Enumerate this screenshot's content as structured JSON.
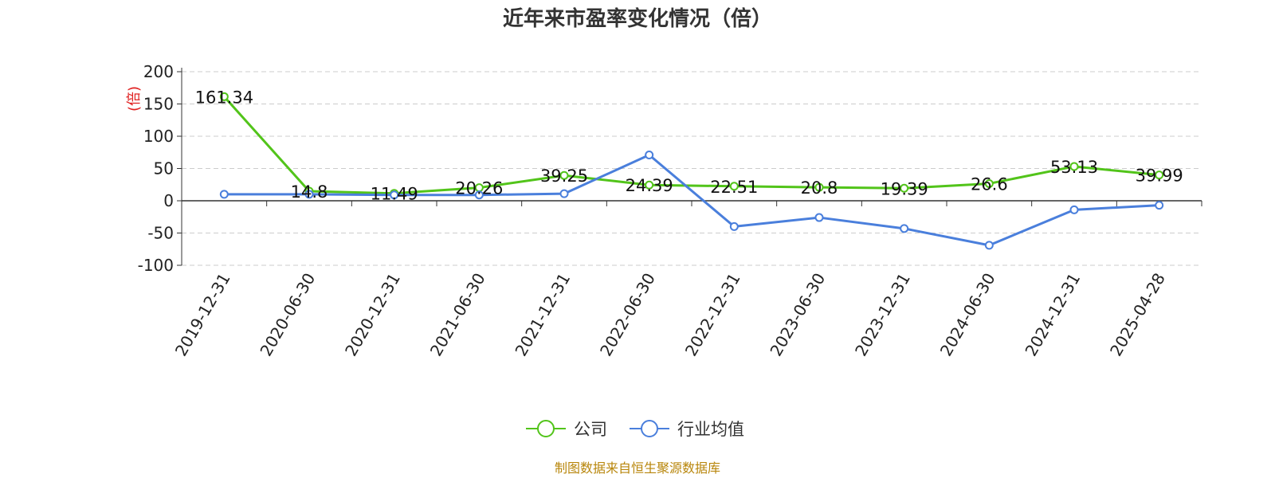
{
  "chart_data": {
    "type": "line",
    "title": "近年来市盈率变化情况（倍）",
    "ylabel": "(倍)",
    "ylim": [
      -100,
      200
    ],
    "yticks": [
      200,
      150,
      100,
      50,
      0,
      -50,
      -100
    ],
    "grid": true,
    "legend_position": "bottom",
    "categories": [
      "2019-12-31",
      "2020-06-30",
      "2020-12-31",
      "2021-06-30",
      "2021-12-31",
      "2022-06-30",
      "2022-12-31",
      "2023-06-30",
      "2023-12-31",
      "2024-06-30",
      "2024-12-31",
      "2025-04-28"
    ],
    "series": [
      {
        "name": "公司",
        "color": "#52c41a",
        "values": [
          161.34,
          14.8,
          11.49,
          20.26,
          39.25,
          24.39,
          22.51,
          20.8,
          19.39,
          26.6,
          53.13,
          39.99
        ],
        "labels": [
          "161.34",
          "14.8",
          "11.49",
          "20.26",
          "39.25",
          "24.39",
          "22.51",
          "20.8",
          "19.39",
          "26.6",
          "53.13",
          "39.99"
        ]
      },
      {
        "name": "行业均值",
        "color": "#4a7fdc",
        "values": [
          10,
          10,
          9,
          9,
          11,
          71,
          -40,
          -26,
          -43,
          -69,
          -14,
          -7
        ]
      }
    ]
  },
  "source": {
    "text": "制图数据来自恒生聚源数据库",
    "color": "#b8860b"
  },
  "colors": {
    "ylabel": "#e02020",
    "grid": "#cccccc",
    "axis": "#333333"
  }
}
